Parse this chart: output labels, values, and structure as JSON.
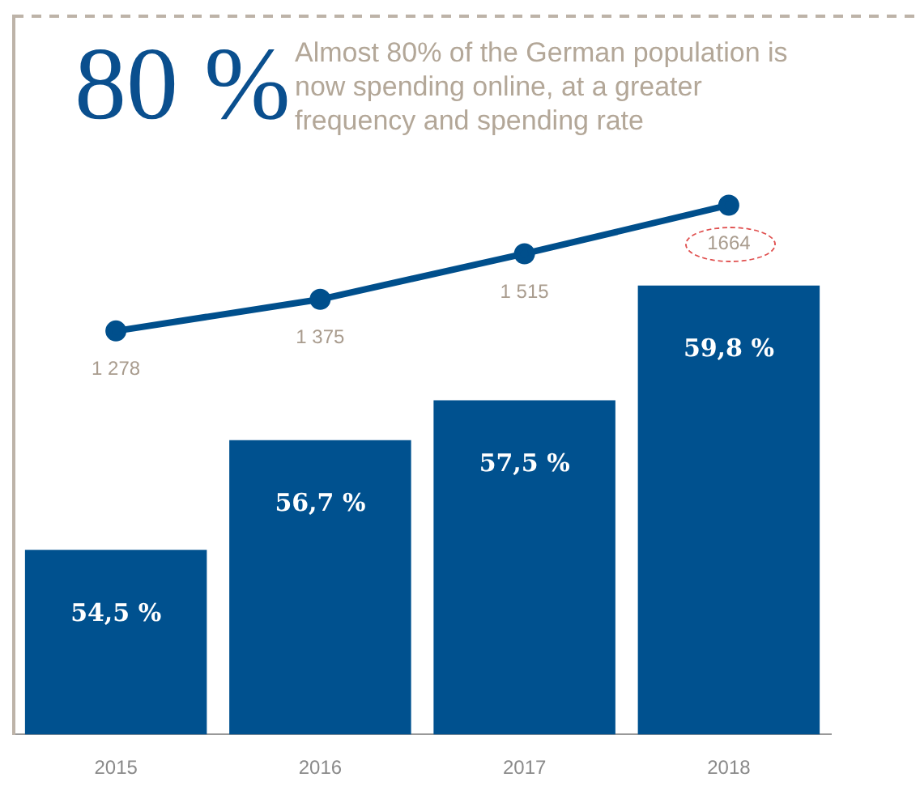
{
  "chart_data": {
    "type": "bar",
    "title": "80 %",
    "subtitle": "Almost 80% of the German population is now spending online, at a greater frequency and spending rate",
    "categories": [
      "2015",
      "2016",
      "2017",
      "2018"
    ],
    "series": [
      {
        "color": "#00518f",
        "values": [
          54.5,
          56.7,
          57.5,
          59.8
        ],
        "value_labels": [
          "54,5 %",
          "56,7 %",
          "57,5 %",
          "59,8 %"
        ]
      },
      {
        "type": "line",
        "axis": "y2",
        "color": "#004f8c",
        "marker": "circle",
        "values": [
          1278,
          1375,
          1515,
          1664
        ],
        "value_labels": [
          "1 278",
          "1 375",
          "1 515",
          "1664"
        ]
      }
    ],
    "ylim": [
      50.8,
      65.2
    ],
    "y2lim": [
      40,
      2244
    ],
    "tick_labels": "x",
    "grid": false,
    "legend": false
  }
}
